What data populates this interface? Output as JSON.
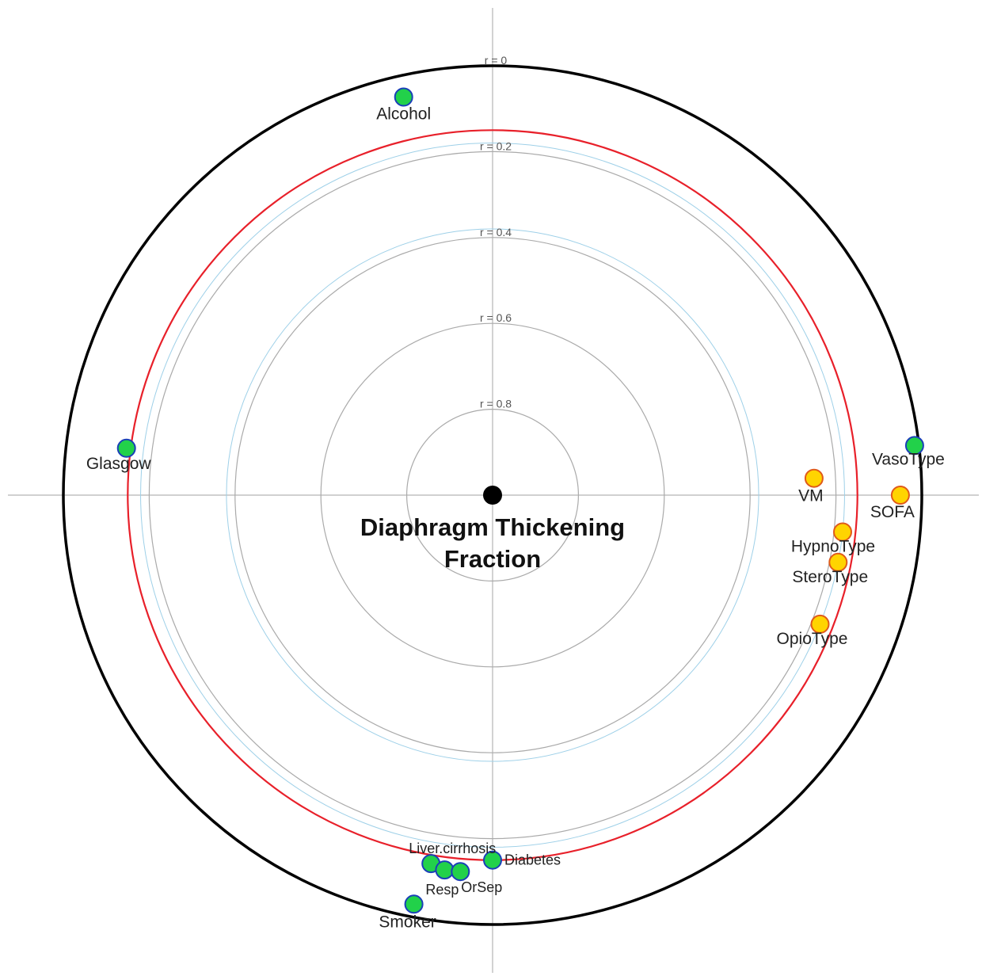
{
  "chart_data": {
    "type": "scatter",
    "title_lines": [
      "Diaphragm Thickening",
      "Fraction"
    ],
    "rings": [
      {
        "label": "r = 0",
        "r": 0
      },
      {
        "label": "r = 0.2",
        "r": 0.2
      },
      {
        "label": "r = 0.4",
        "r": 0.4
      },
      {
        "label": "r = 0.6",
        "r": 0.6
      },
      {
        "label": "r = 0.8",
        "r": 0.8
      }
    ],
    "threshold_r": 0.15,
    "colors": {
      "outer": "#000000",
      "ring": "#aaaaaa",
      "threshold": "#e8202a",
      "green_fill": "#22d14a",
      "green_stroke": "#1a3fb8",
      "yellow_fill": "#ffd400",
      "yellow_stroke": "#e05a1a",
      "center": "#000000"
    },
    "points": [
      {
        "label": "Alcohol",
        "r": 0.05,
        "angle_deg": 102.6,
        "group": "green"
      },
      {
        "label": "Glasgow",
        "r": 0.14,
        "angle_deg": 172.7,
        "group": "green"
      },
      {
        "label": "VasoType",
        "r": 0.01,
        "angle_deg": 6.7,
        "group": "green"
      },
      {
        "label": "VM",
        "r": 0.25,
        "angle_deg": 3.0,
        "group": "yellow"
      },
      {
        "label": "SOFA",
        "r": 0.05,
        "angle_deg": 0.0,
        "group": "yellow"
      },
      {
        "label": "HypnoType",
        "r": 0.18,
        "angle_deg": -6.0,
        "group": "yellow"
      },
      {
        "label": "SteroType",
        "r": 0.18,
        "angle_deg": -11.0,
        "group": "yellow"
      },
      {
        "label": "OpioType",
        "r": 0.18,
        "angle_deg": -21.5,
        "group": "yellow"
      },
      {
        "label": "Liver.cirrhosis",
        "r": 0.13,
        "angle_deg": -99.5,
        "group": "green"
      },
      {
        "label": "Resp",
        "r": 0.12,
        "angle_deg": -97.3,
        "group": "green"
      },
      {
        "label": "OrSep",
        "r": 0.12,
        "angle_deg": -94.9,
        "group": "green"
      },
      {
        "label": "Diabetes",
        "r": 0.15,
        "angle_deg": -90.0,
        "group": "green"
      },
      {
        "label": "Smoker",
        "r": 0.03,
        "angle_deg": -100.9,
        "group": "green"
      }
    ]
  }
}
